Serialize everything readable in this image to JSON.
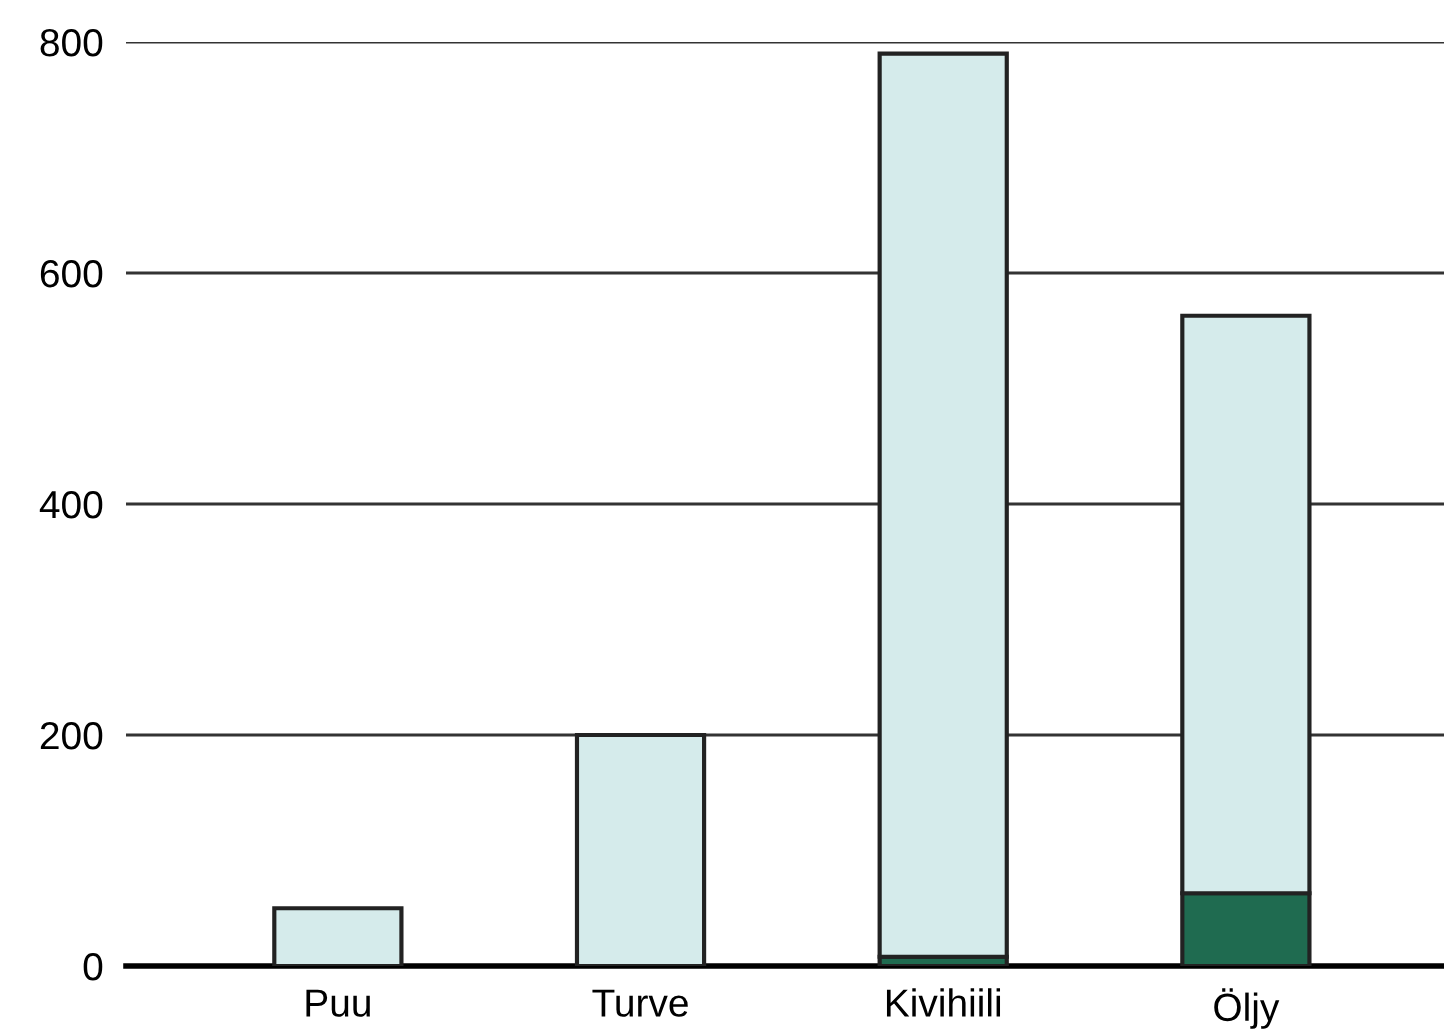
{
  "chart_data": {
    "type": "bar",
    "stacked": true,
    "categories": [
      "Puu",
      "Turve",
      "Kivihiili",
      "Öljy"
    ],
    "series": [
      {
        "color": "#1f6b50",
        "values": [
          0,
          0,
          8,
          63
        ]
      },
      {
        "color": "#d5ebeb",
        "values": [
          50,
          200,
          782,
          500
        ]
      }
    ],
    "ylim": [
      0,
      800
    ],
    "yticks": [
      0,
      200,
      400,
      600,
      800
    ],
    "grid": "y"
  }
}
